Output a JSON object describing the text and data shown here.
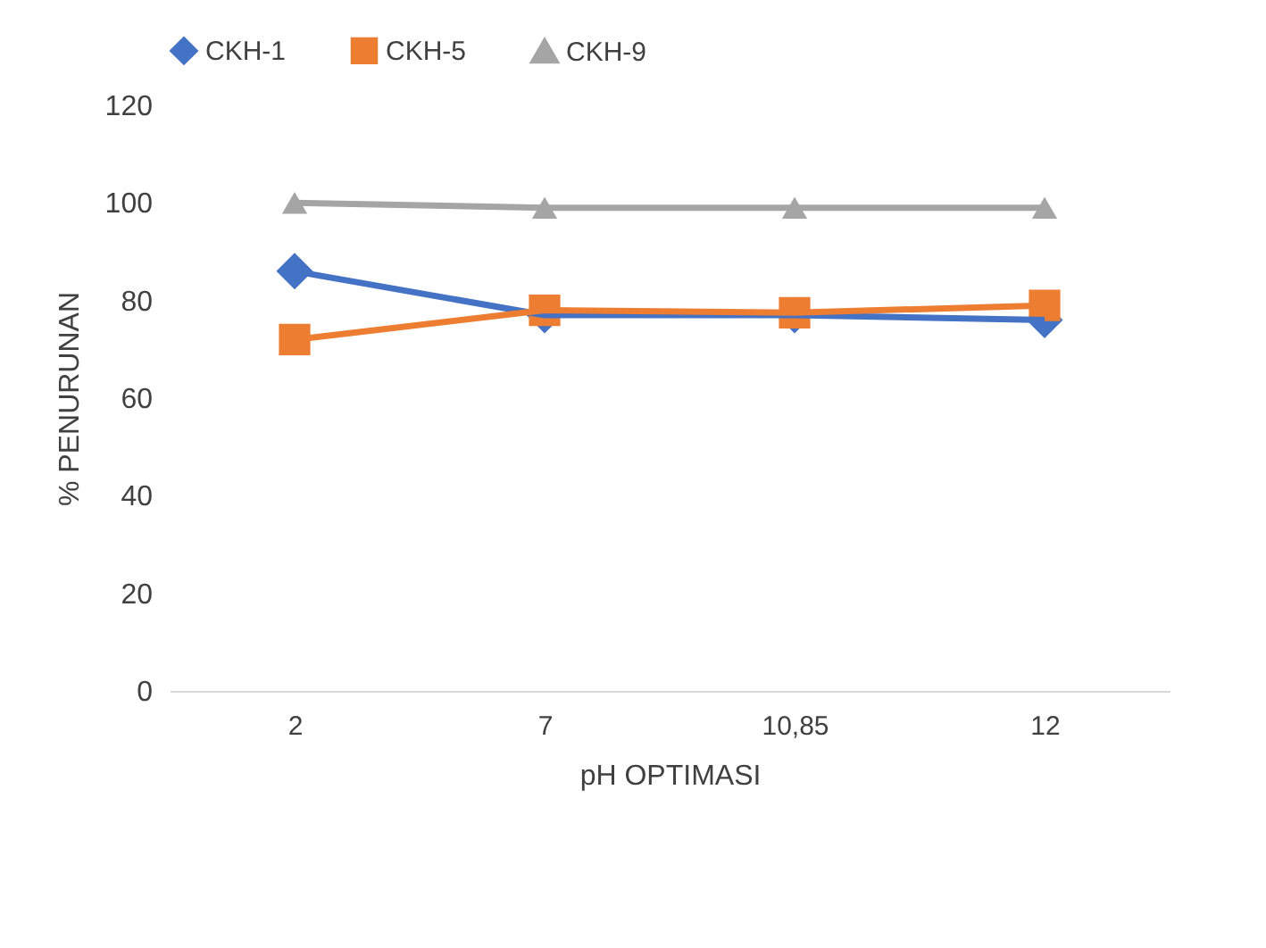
{
  "chart_data": {
    "type": "line",
    "xlabel": "pH OPTIMASI",
    "ylabel": "% PENURUNAN",
    "categories": [
      "2",
      "7",
      "10,85",
      "12"
    ],
    "ylim": [
      0,
      120
    ],
    "yticks": [
      0,
      20,
      40,
      60,
      80,
      100,
      120
    ],
    "grid": false,
    "legend": "top",
    "series": [
      {
        "name": "CKH-1",
        "color": "#4472c4",
        "marker": "diamond",
        "values": [
          86,
          77,
          77,
          76
        ]
      },
      {
        "name": "CKH-5",
        "color": "#ed7d31",
        "marker": "square",
        "values": [
          72,
          78,
          77.5,
          79
        ]
      },
      {
        "name": "CKH-9",
        "color": "#a5a5a5",
        "marker": "triangle",
        "values": [
          100,
          99,
          99,
          99
        ]
      }
    ]
  }
}
